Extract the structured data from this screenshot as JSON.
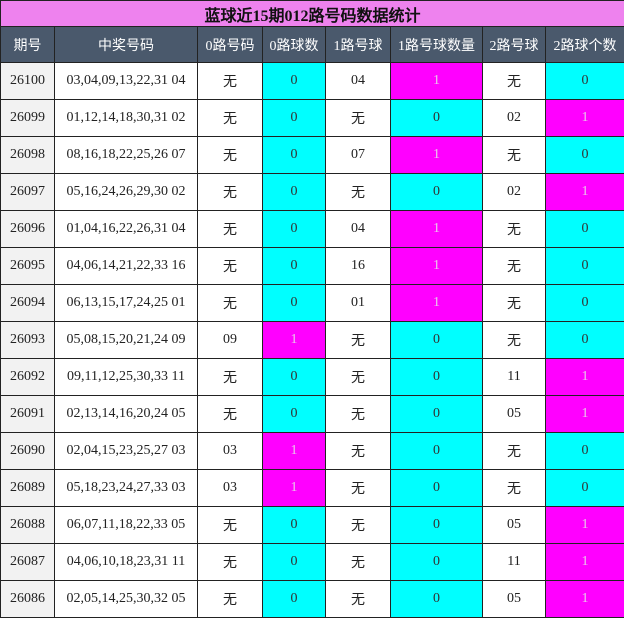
{
  "table": {
    "title": "蓝球近15期012路号码数据统计",
    "header": [
      "期号",
      "中奖号码",
      "0路号码",
      "0路球数",
      "1路号球",
      "1路号球数量",
      "2路号球",
      "2路球个数"
    ],
    "rows": [
      [
        "26100",
        "03,04,09,13,22,31 04",
        "无",
        "0",
        "04",
        "1",
        "无",
        "0"
      ],
      [
        "26099",
        "01,12,14,18,30,31 02",
        "无",
        "0",
        "无",
        "0",
        "02",
        "1"
      ],
      [
        "26098",
        "08,16,18,22,25,26 07",
        "无",
        "0",
        "07",
        "1",
        "无",
        "0"
      ],
      [
        "26097",
        "05,16,24,26,29,30 02",
        "无",
        "0",
        "无",
        "0",
        "02",
        "1"
      ],
      [
        "26096",
        "01,04,16,22,26,31 04",
        "无",
        "0",
        "04",
        "1",
        "无",
        "0"
      ],
      [
        "26095",
        "04,06,14,21,22,33 16",
        "无",
        "0",
        "16",
        "1",
        "无",
        "0"
      ],
      [
        "26094",
        "06,13,15,17,24,25 01",
        "无",
        "0",
        "01",
        "1",
        "无",
        "0"
      ],
      [
        "26093",
        "05,08,15,20,21,24 09",
        "09",
        "1",
        "无",
        "0",
        "无",
        "0"
      ],
      [
        "26092",
        "09,11,12,25,30,33 11",
        "无",
        "0",
        "无",
        "0",
        "11",
        "1"
      ],
      [
        "26091",
        "02,13,14,16,20,24 05",
        "无",
        "0",
        "无",
        "0",
        "05",
        "1"
      ],
      [
        "26090",
        "02,04,15,23,25,27 03",
        "03",
        "1",
        "无",
        "0",
        "无",
        "0"
      ],
      [
        "26089",
        "05,18,23,24,27,33 03",
        "03",
        "1",
        "无",
        "0",
        "无",
        "0"
      ],
      [
        "26088",
        "06,07,11,18,22,33 05",
        "无",
        "0",
        "无",
        "0",
        "05",
        "1"
      ],
      [
        "26087",
        "04,06,10,18,23,31 11",
        "无",
        "0",
        "无",
        "0",
        "11",
        "1"
      ],
      [
        "26086",
        "02,05,14,25,30,32 05",
        "无",
        "0",
        "无",
        "0",
        "05",
        "1"
      ]
    ],
    "cell_colors": {
      "0": {
        "background": "#00ffff",
        "text": "#333333"
      },
      "1": {
        "background": "#ff00ff",
        "text": "#e8c8e8"
      }
    }
  }
}
